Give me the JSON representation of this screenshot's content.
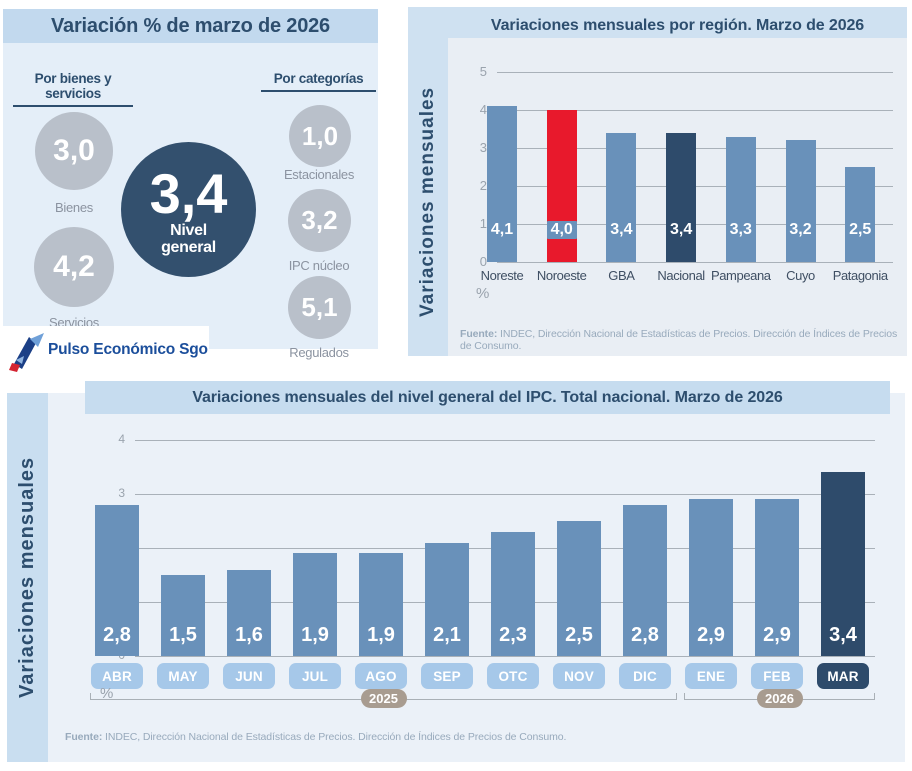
{
  "summary_panel": {
    "title": "Variación % de marzo de 2026",
    "goods_services": {
      "heading": "Por bienes y servicios",
      "items": [
        {
          "value": "3,0",
          "label": "Bienes"
        },
        {
          "value": "4,2",
          "label": "Servicios"
        }
      ]
    },
    "general": {
      "value": "3,4",
      "label_line1": "Nivel",
      "label_line2": "general"
    },
    "categories": {
      "heading": "Por categorías",
      "items": [
        {
          "value": "1,0",
          "label": "Estacionales"
        },
        {
          "value": "3,2",
          "label": "IPC núcleo"
        },
        {
          "value": "5,1",
          "label": "Regulados"
        }
      ]
    },
    "logo": {
      "text": "Pulso Económico Sgo",
      "icon": "pulse-arrow-logo"
    }
  },
  "source_note": {
    "prefix": "Fuente:",
    "text": " INDEC, Dirección Nacional de Estadísticas de Precios. Dirección de Índices de Precios de Consumo."
  },
  "chart_data": [
    {
      "id": "region",
      "type": "bar",
      "title": "Variaciones mensuales por región. Marzo de 2026",
      "ylabel": "Variaciones mensuales",
      "xlabel": "%",
      "ylim": [
        0,
        5
      ],
      "yticks": [
        0,
        1,
        2,
        3,
        4,
        5
      ],
      "grid": true,
      "legend": "none",
      "categories": [
        "Noreste",
        "Noroeste",
        "GBA",
        "Nacional",
        "Pampeana",
        "Cuyo",
        "Patagonia"
      ],
      "values": [
        4.1,
        4.0,
        3.4,
        3.4,
        3.3,
        3.2,
        2.5
      ],
      "value_labels": [
        "4,1",
        "4,0",
        "3,4",
        "3,4",
        "3,3",
        "3,2",
        "2,5"
      ],
      "bar_colors": [
        "steel",
        "red",
        "steel",
        "dark",
        "steel",
        "steel",
        "steel"
      ]
    },
    {
      "id": "national",
      "type": "bar",
      "title": "Variaciones mensuales del nivel general del IPC. Total nacional. Marzo de 2026",
      "ylabel": "Variaciones mensuales",
      "xlabel": "%",
      "ylim": [
        0,
        4
      ],
      "yticks": [
        0,
        1,
        2,
        3,
        4
      ],
      "grid": true,
      "legend": "none",
      "categories": [
        "ABR",
        "MAY",
        "JUN",
        "JUL",
        "AGO",
        "SEP",
        "OTC",
        "NOV",
        "DIC",
        "ENE",
        "FEB",
        "MAR"
      ],
      "values": [
        2.8,
        1.5,
        1.6,
        1.9,
        1.9,
        2.1,
        2.3,
        2.5,
        2.8,
        2.9,
        2.9,
        3.4
      ],
      "value_labels": [
        "2,8",
        "1,5",
        "1,6",
        "1,9",
        "1,9",
        "2,1",
        "2,3",
        "2,5",
        "2,8",
        "2,9",
        "2,9",
        "3,4"
      ],
      "bar_colors": [
        "steel",
        "steel",
        "steel",
        "steel",
        "steel",
        "steel",
        "steel",
        "steel",
        "steel",
        "steel",
        "steel",
        "dark"
      ],
      "year_groups": [
        {
          "label": "2025",
          "span": [
            0,
            8
          ]
        },
        {
          "label": "2026",
          "span": [
            9,
            11
          ]
        }
      ]
    }
  ],
  "colors": {
    "steel_blue": "#6991ba",
    "dark_navy": "#2e4b6b",
    "red": "#e8192c",
    "right_panel_blue": "#cfe1f1",
    "band_blue": "#c2d9ee",
    "plot_bg": "#e9eef4",
    "circle_grey": "#b9c0ca",
    "general_circle_navy": "#33506e",
    "month_pill_blue": "#a6c8e9",
    "year_pill_tan": "#a89c90",
    "logo_blue": "#1b4e9b"
  }
}
